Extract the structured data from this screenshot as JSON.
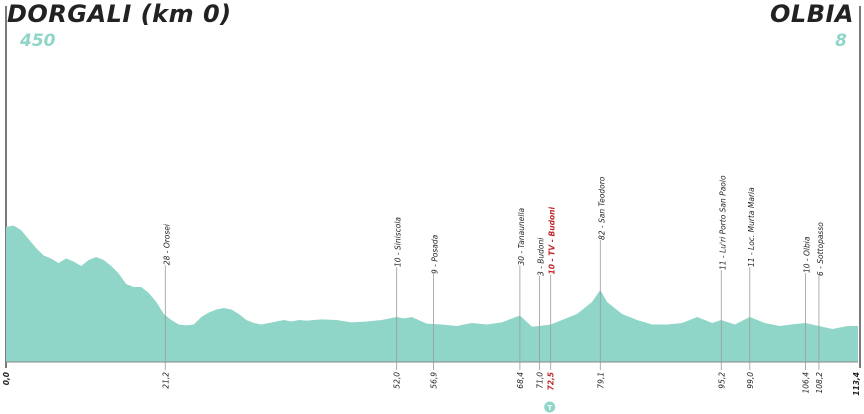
{
  "start": {
    "name": "DORGALI (km 0)",
    "elevation": "450"
  },
  "finish": {
    "name": "OLBIA",
    "elevation": "8"
  },
  "colors": {
    "profile": "#8fd6c8",
    "accent": "#8fd6c8",
    "text": "#222222",
    "highlight": "#c0272d",
    "line": "#9a9a9a"
  },
  "chart_data": {
    "type": "area",
    "x_unit": "km",
    "xlim": [
      0,
      113.4
    ],
    "profile": {
      "x": [
        0,
        1,
        2,
        3,
        4,
        5,
        6,
        7,
        8,
        9,
        10,
        11,
        12,
        13,
        14,
        15,
        16,
        17,
        18,
        19,
        20,
        21,
        22,
        23,
        24,
        25,
        26,
        27,
        28,
        29,
        30,
        31,
        32,
        33,
        34,
        35,
        36,
        37,
        38,
        39,
        40,
        42,
        44,
        46,
        48,
        50,
        52,
        53,
        54,
        56,
        58,
        60,
        62,
        64,
        66,
        68.4,
        70,
        71,
        72.5,
        74,
        76,
        78,
        79.1,
        80,
        82,
        84,
        86,
        88,
        90,
        92,
        94,
        95.2,
        97,
        99,
        101,
        103,
        104.5,
        106.4,
        108.2,
        110,
        112,
        113.4
      ],
      "y": [
        450,
        455,
        440,
        410,
        380,
        355,
        345,
        330,
        345,
        335,
        320,
        340,
        350,
        340,
        320,
        295,
        260,
        250,
        250,
        230,
        200,
        160,
        140,
        125,
        122,
        125,
        150,
        165,
        175,
        180,
        175,
        160,
        140,
        130,
        125,
        130,
        135,
        140,
        135,
        140,
        138,
        142,
        140,
        132,
        135,
        140,
        150,
        145,
        150,
        128,
        125,
        120,
        130,
        125,
        132,
        155,
        118,
        120,
        125,
        140,
        160,
        200,
        240,
        200,
        160,
        140,
        125,
        125,
        130,
        150,
        130,
        140,
        125,
        150,
        130,
        120,
        125,
        130,
        120,
        110,
        120,
        120
      ]
    },
    "points": [
      {
        "km": "21,2",
        "label": "28 - Orosei",
        "highlight": false
      },
      {
        "km": "52,0",
        "label": "10 - Siniscola",
        "highlight": false
      },
      {
        "km": "56,9",
        "label": "9 - Posada",
        "highlight": false
      },
      {
        "km": "68,4",
        "label": "30 - Tanaunella",
        "highlight": false
      },
      {
        "km": "71,0",
        "label": "3 - Budoni",
        "highlight": false
      },
      {
        "km": "72,5",
        "label": "10 - TV - Budoni",
        "highlight": true
      },
      {
        "km": "79,1",
        "label": "82 - San Teodoro",
        "highlight": false
      },
      {
        "km": "95,2",
        "label": "11 - Lu'ri Porto San Paolo",
        "highlight": false
      },
      {
        "km": "99,0",
        "label": "11 - Loc. Murta Maria",
        "highlight": false
      },
      {
        "km": "106,4",
        "label": "10 - Olbia",
        "highlight": false
      },
      {
        "km": "108,2",
        "label": "6 - Sottopasso",
        "highlight": false
      }
    ],
    "axis_start": "0,0",
    "axis_end": "113,4",
    "sprint_marker": {
      "km": "72,5",
      "symbol": "T"
    }
  }
}
